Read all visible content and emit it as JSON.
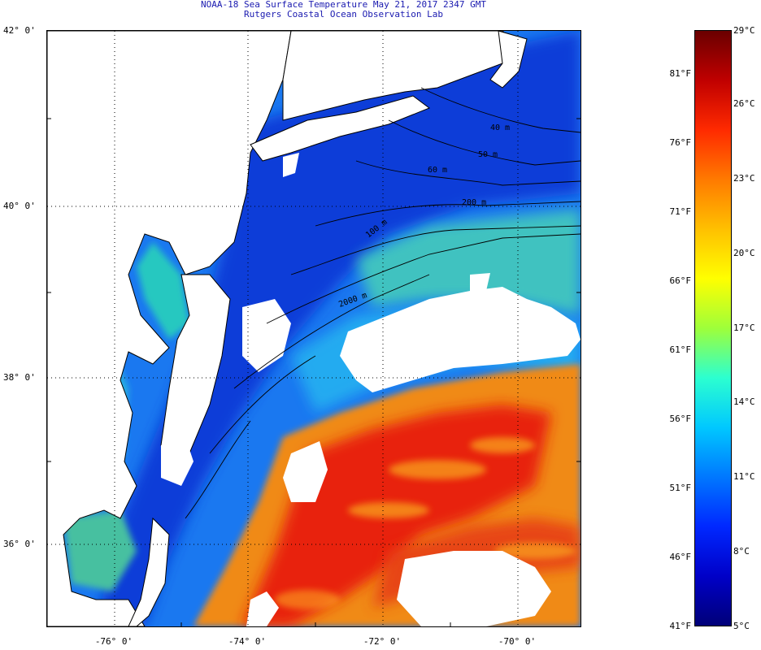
{
  "header": {
    "title": "NOAA-18 Sea Surface Temperature May 21, 2017 2347 GMT",
    "subtitle": "Rutgers Coastal Ocean Observation Lab"
  },
  "map": {
    "lat_labels": [
      "42° 0'",
      "40° 0'",
      "38° 0'",
      "36° 0'"
    ],
    "lon_labels": [
      "-76° 0'",
      "-74° 0'",
      "-72° 0'",
      "-70° 0'"
    ],
    "contour_labels": [
      "40 m",
      "50 m",
      "60 m",
      "200 m",
      "100 m",
      "2000 m"
    ],
    "colors": {
      "cold": "#0a3cd8",
      "cool": "#1a78f0",
      "mild": "#28d0e8",
      "warm": "#f0a020",
      "hot": "#e82410",
      "cloud": "#ffffff",
      "land": "#ffffff"
    }
  },
  "colorbar": {
    "fahrenheit_labels": [
      "81°F",
      "76°F",
      "71°F",
      "66°F",
      "61°F",
      "56°F",
      "51°F",
      "46°F",
      "41°F"
    ],
    "celsius_labels": [
      "29°C",
      "26°C",
      "23°C",
      "20°C",
      "17°C",
      "14°C",
      "11°C",
      "8°C",
      "5°C"
    ],
    "gradient_colors": [
      "#6a0000",
      "#c00000",
      "#ff2a00",
      "#ff7a00",
      "#ffc000",
      "#ffff00",
      "#9eff3a",
      "#2cffd0",
      "#00c8ff",
      "#0078ff",
      "#0028ff",
      "#0000c8",
      "#000078"
    ]
  }
}
